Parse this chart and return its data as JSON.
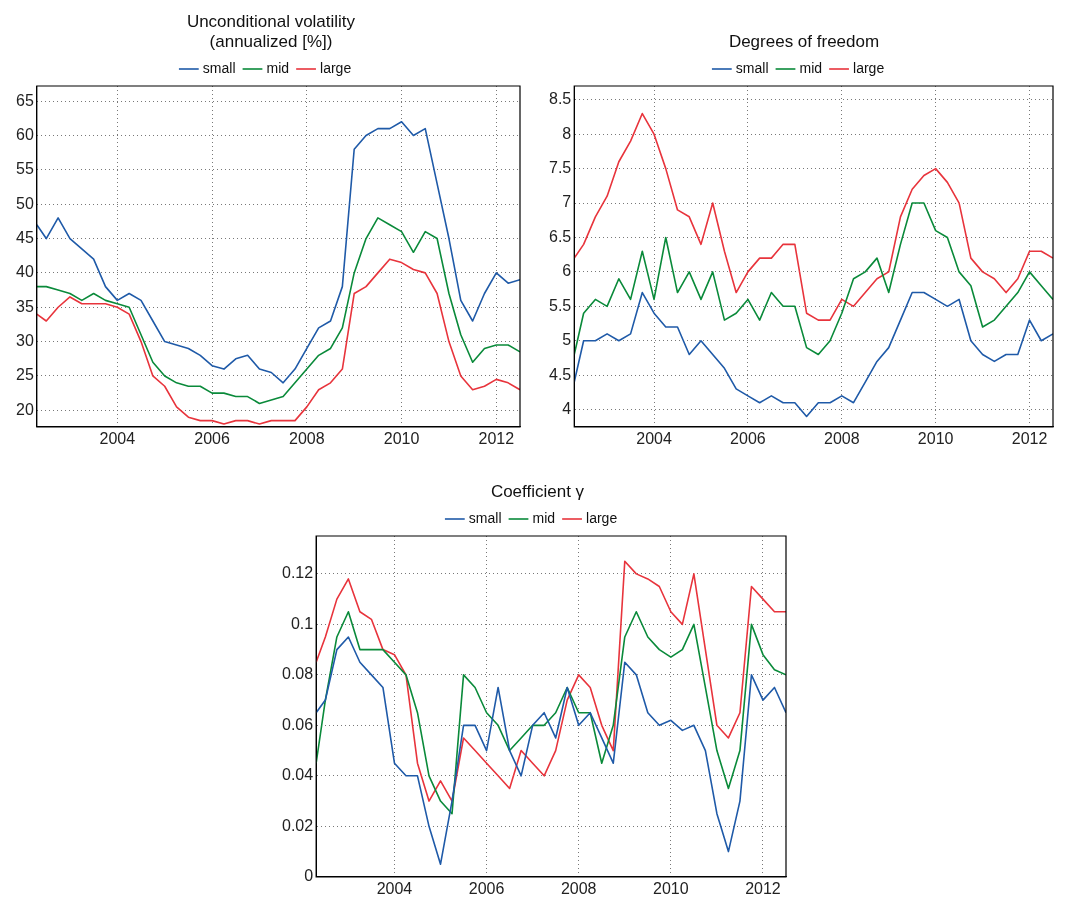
{
  "chart_data": [
    {
      "type": "line",
      "title": "Unconditional volatility (annualized [%])",
      "x": [
        2002.3,
        2002.5,
        2002.75,
        2003,
        2003.25,
        2003.5,
        2003.75,
        2004,
        2004.25,
        2004.5,
        2004.75,
        2005,
        2005.25,
        2005.5,
        2005.75,
        2006,
        2006.25,
        2006.5,
        2006.75,
        2007,
        2007.25,
        2007.5,
        2007.75,
        2008,
        2008.25,
        2008.5,
        2008.75,
        2009,
        2009.25,
        2009.5,
        2009.75,
        2010,
        2010.25,
        2010.5,
        2010.75,
        2011,
        2011.25,
        2011.5,
        2011.75,
        2012,
        2012.25,
        2012.5
      ],
      "series": [
        {
          "name": "small",
          "color": "#1f5aa8",
          "values": [
            47,
            45,
            48,
            45,
            43.5,
            42,
            38,
            36,
            37,
            36,
            33,
            30,
            29.5,
            29,
            28,
            26.5,
            26,
            27.5,
            28,
            26,
            25.5,
            24,
            26,
            29,
            32,
            33,
            38,
            58,
            60,
            61,
            61,
            62,
            60,
            61,
            53,
            45,
            36,
            33,
            37,
            40,
            38.5,
            39
          ]
        },
        {
          "name": "mid",
          "color": "#0a8a3a",
          "values": [
            38,
            38,
            37.5,
            37,
            36,
            37,
            36,
            35.5,
            35,
            31,
            27,
            25,
            24,
            23.5,
            23.5,
            22.5,
            22.5,
            22,
            22,
            21,
            21.5,
            22,
            24,
            26,
            28,
            29,
            32,
            40,
            45,
            48,
            47,
            46,
            43,
            46,
            45,
            37,
            31,
            27,
            29,
            29.5,
            29.5,
            28.5
          ]
        },
        {
          "name": "large",
          "color": "#e8343c",
          "values": [
            34,
            33,
            35,
            36.5,
            35.5,
            35.5,
            35.5,
            35,
            34,
            30,
            25,
            23.5,
            20.5,
            19,
            18.5,
            18.5,
            18,
            18.5,
            18.5,
            18,
            18.5,
            18.5,
            18.5,
            20.5,
            23,
            24,
            26,
            37,
            38,
            40,
            42,
            41.5,
            40.5,
            40,
            37,
            30,
            25,
            23,
            23.5,
            24.5,
            24,
            23
          ]
        }
      ],
      "xlim": [
        2002.3,
        2012.5
      ],
      "xticks": [
        2004,
        2006,
        2008,
        2010,
        2012
      ],
      "ylim": [
        17.6,
        67.2
      ],
      "yticks": [
        20,
        25,
        30,
        35,
        40,
        45,
        50,
        55,
        60,
        65
      ],
      "grid": true,
      "legend": "top",
      "line_style": "solid"
    },
    {
      "type": "line",
      "title": "Degrees of freedom",
      "x": [
        2002.3,
        2002.5,
        2002.75,
        2003,
        2003.25,
        2003.5,
        2003.75,
        2004,
        2004.25,
        2004.5,
        2004.75,
        2005,
        2005.25,
        2005.5,
        2005.75,
        2006,
        2006.25,
        2006.5,
        2006.75,
        2007,
        2007.25,
        2007.5,
        2007.75,
        2008,
        2008.25,
        2008.5,
        2008.75,
        2009,
        2009.25,
        2009.5,
        2009.75,
        2010,
        2010.25,
        2010.5,
        2010.75,
        2011,
        2011.25,
        2011.5,
        2011.75,
        2012,
        2012.25,
        2012.5
      ],
      "series": [
        {
          "name": "small",
          "color": "#1f5aa8",
          "values": [
            4.4,
            5,
            5,
            5.1,
            5,
            5.1,
            5.7,
            5.4,
            5.2,
            5.2,
            4.8,
            5,
            4.8,
            4.6,
            4.3,
            4.2,
            4.1,
            4.2,
            4.1,
            4.1,
            3.9,
            4.1,
            4.1,
            4.2,
            4.1,
            4.4,
            4.7,
            4.9,
            5.3,
            5.7,
            5.7,
            5.6,
            5.5,
            5.6,
            5,
            4.8,
            4.7,
            4.8,
            4.8,
            5.3,
            5,
            5.1
          ]
        },
        {
          "name": "mid",
          "color": "#0a8a3a",
          "values": [
            4.8,
            5.4,
            5.6,
            5.5,
            5.9,
            5.6,
            6.3,
            5.6,
            6.5,
            5.7,
            6,
            5.6,
            6,
            5.3,
            5.4,
            5.6,
            5.3,
            5.7,
            5.5,
            5.5,
            4.9,
            4.8,
            5,
            5.4,
            5.9,
            6,
            6.2,
            5.7,
            6.4,
            7,
            7,
            6.6,
            6.5,
            6,
            5.8,
            5.2,
            5.3,
            5.5,
            5.7,
            6,
            5.8,
            5.6
          ]
        },
        {
          "name": "large",
          "color": "#e8343c",
          "values": [
            6.2,
            6.4,
            6.8,
            7.1,
            7.6,
            7.9,
            8.3,
            8,
            7.5,
            6.9,
            6.8,
            6.4,
            7,
            6.3,
            5.7,
            6,
            6.2,
            6.2,
            6.4,
            6.4,
            5.4,
            5.3,
            5.3,
            5.6,
            5.5,
            5.7,
            5.9,
            6,
            6.8,
            7.2,
            7.4,
            7.5,
            7.3,
            7,
            6.2,
            6,
            5.9,
            5.7,
            5.9,
            6.3,
            6.3,
            6.2
          ]
        }
      ],
      "xlim": [
        2002.3,
        2012.5
      ],
      "xticks": [
        2004,
        2006,
        2008,
        2010,
        2012
      ],
      "ylim": [
        3.75,
        8.7
      ],
      "yticks": [
        4,
        4.5,
        5,
        5.5,
        6,
        6.5,
        7,
        7.5,
        8,
        8.5
      ],
      "grid": true,
      "legend": "top",
      "line_style": "solid"
    },
    {
      "type": "line",
      "title": "Coefficient γ",
      "x": [
        2002.3,
        2002.5,
        2002.75,
        2003,
        2003.25,
        2003.5,
        2003.75,
        2004,
        2004.25,
        2004.5,
        2004.75,
        2005,
        2005.25,
        2005.5,
        2005.75,
        2006,
        2006.25,
        2006.5,
        2006.75,
        2007,
        2007.25,
        2007.5,
        2007.75,
        2008,
        2008.25,
        2008.5,
        2008.75,
        2009,
        2009.25,
        2009.5,
        2009.75,
        2010,
        2010.25,
        2010.5,
        2010.75,
        2011,
        2011.25,
        2011.5,
        2011.75,
        2012,
        2012.25,
        2012.5
      ],
      "series": [
        {
          "name": "small",
          "color": "#1f5aa8",
          "values": [
            0.065,
            0.07,
            0.09,
            0.095,
            0.085,
            0.08,
            0.075,
            0.045,
            0.04,
            0.04,
            0.02,
            0.005,
            0.03,
            0.06,
            0.06,
            0.05,
            0.075,
            0.05,
            0.04,
            0.06,
            0.065,
            0.055,
            0.075,
            0.06,
            0.065,
            0.055,
            0.045,
            0.085,
            0.08,
            0.065,
            0.06,
            0.062,
            0.058,
            0.06,
            0.05,
            0.025,
            0.01,
            0.03,
            0.08,
            0.07,
            0.075,
            0.065
          ]
        },
        {
          "name": "mid",
          "color": "#0a8a3a",
          "values": [
            0.045,
            0.07,
            0.095,
            0.105,
            0.09,
            0.09,
            0.09,
            0.085,
            0.08,
            0.065,
            0.04,
            0.03,
            0.025,
            0.08,
            0.075,
            0.065,
            0.06,
            0.05,
            0.055,
            0.06,
            0.06,
            0.065,
            0.075,
            0.065,
            0.065,
            0.045,
            0.06,
            0.095,
            0.105,
            0.095,
            0.09,
            0.087,
            0.09,
            0.1,
            0.075,
            0.05,
            0.035,
            0.05,
            0.1,
            0.088,
            0.082,
            0.08
          ]
        },
        {
          "name": "large",
          "color": "#e8343c",
          "values": [
            0.085,
            0.095,
            0.11,
            0.118,
            0.105,
            0.102,
            0.09,
            0.088,
            0.08,
            0.045,
            0.03,
            0.038,
            0.03,
            0.055,
            0.05,
            0.045,
            0.04,
            0.035,
            0.05,
            0.045,
            0.04,
            0.05,
            0.07,
            0.08,
            0.075,
            0.06,
            0.05,
            0.125,
            0.12,
            0.118,
            0.115,
            0.105,
            0.1,
            0.12,
            0.09,
            0.06,
            0.055,
            0.065,
            0.115,
            0.11,
            0.105,
            0.105
          ]
        }
      ],
      "xlim": [
        2002.3,
        2012.5
      ],
      "xticks": [
        2004,
        2006,
        2008,
        2010,
        2012
      ],
      "ylim": [
        0,
        0.135
      ],
      "yticks": [
        0,
        0.02,
        0.04,
        0.06,
        0.08,
        0.1,
        0.12
      ],
      "grid": true,
      "legend": "top",
      "line_style": "solid"
    }
  ]
}
